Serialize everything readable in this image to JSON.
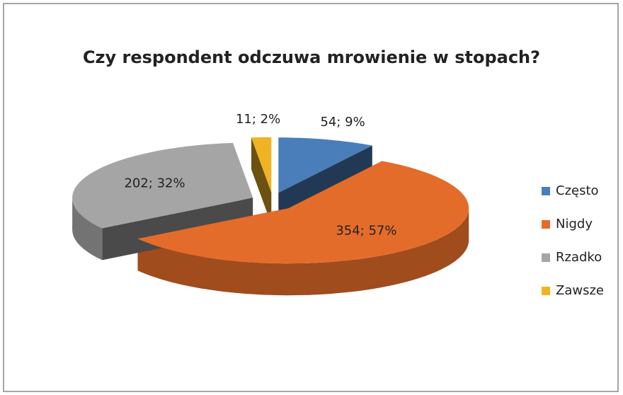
{
  "chart_data": {
    "type": "pie",
    "title": "Czy respondent odczuwa mrowienie w stopach?",
    "categories": [
      "Często",
      "Nigdy",
      "Rzadko",
      "Zawsze"
    ],
    "values": [
      54,
      354,
      202,
      11
    ],
    "value_labels": [
      "54; 9%",
      "354; 57%",
      "202; 32%",
      "11; 2%"
    ],
    "colors": [
      "#4a7ebb",
      "#e46c2a",
      "#a5a5a5",
      "#f0b323"
    ],
    "legend": "right"
  }
}
